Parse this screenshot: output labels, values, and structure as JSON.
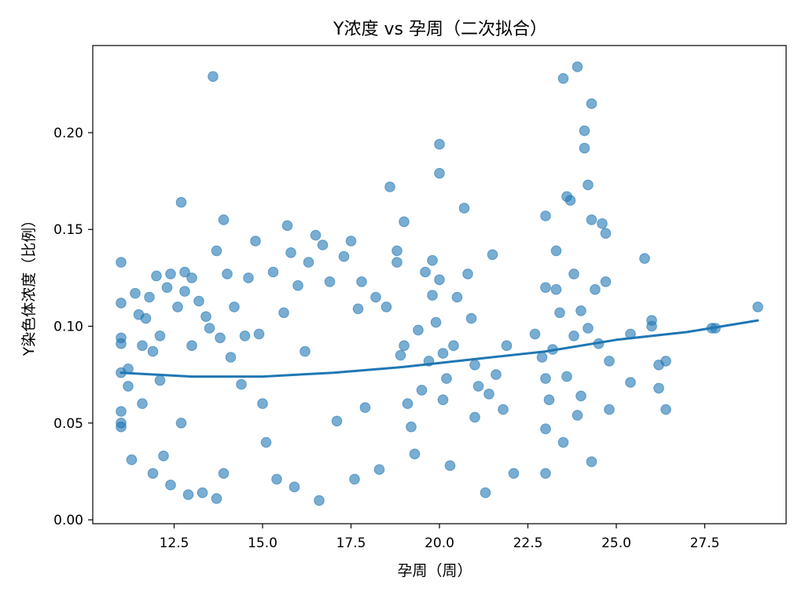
{
  "chart_data": {
    "type": "scatter",
    "title": "Y浓度 vs 孕周（二次拟合）",
    "xlabel": "孕周（周）",
    "ylabel": "Y染色体浓度（比例）",
    "xlim": [
      10.2,
      29.8
    ],
    "ylim": [
      -0.002,
      0.245
    ],
    "x_ticks": [
      {
        "value": 12.5,
        "label": "12.5"
      },
      {
        "value": 15.0,
        "label": "15.0"
      },
      {
        "value": 17.5,
        "label": "17.5"
      },
      {
        "value": 20.0,
        "label": "20.0"
      },
      {
        "value": 22.5,
        "label": "22.5"
      },
      {
        "value": 25.0,
        "label": "25.0"
      },
      {
        "value": 27.5,
        "label": "27.5"
      }
    ],
    "y_ticks": [
      {
        "value": 0.0,
        "label": "0.00"
      },
      {
        "value": 0.05,
        "label": "0.05"
      },
      {
        "value": 0.1,
        "label": "0.10"
      },
      {
        "value": 0.15,
        "label": "0.15"
      },
      {
        "value": 0.2,
        "label": "0.20"
      }
    ],
    "grid": false,
    "legend": "none",
    "colors": {
      "points": "#1f77b4",
      "fit": "#1f77b4"
    },
    "series": [
      {
        "kind": "scatter",
        "points": [
          [
            11.0,
            0.133
          ],
          [
            11.0,
            0.112
          ],
          [
            11.0,
            0.094
          ],
          [
            11.0,
            0.091
          ],
          [
            11.0,
            0.076
          ],
          [
            11.0,
            0.056
          ],
          [
            11.0,
            0.05
          ],
          [
            11.0,
            0.048
          ],
          [
            11.2,
            0.078
          ],
          [
            11.2,
            0.069
          ],
          [
            11.3,
            0.031
          ],
          [
            11.4,
            0.117
          ],
          [
            11.5,
            0.106
          ],
          [
            11.6,
            0.09
          ],
          [
            11.6,
            0.06
          ],
          [
            11.7,
            0.104
          ],
          [
            11.8,
            0.115
          ],
          [
            11.9,
            0.087
          ],
          [
            11.9,
            0.024
          ],
          [
            12.0,
            0.126
          ],
          [
            12.1,
            0.095
          ],
          [
            12.1,
            0.072
          ],
          [
            12.2,
            0.033
          ],
          [
            12.3,
            0.12
          ],
          [
            12.4,
            0.127
          ],
          [
            12.4,
            0.018
          ],
          [
            12.6,
            0.11
          ],
          [
            12.7,
            0.164
          ],
          [
            12.7,
            0.05
          ],
          [
            12.8,
            0.128
          ],
          [
            12.8,
            0.118
          ],
          [
            12.9,
            0.013
          ],
          [
            13.0,
            0.125
          ],
          [
            13.0,
            0.09
          ],
          [
            13.2,
            0.113
          ],
          [
            13.3,
            0.014
          ],
          [
            13.4,
            0.105
          ],
          [
            13.5,
            0.099
          ],
          [
            13.6,
            0.229
          ],
          [
            13.7,
            0.139
          ],
          [
            13.7,
            0.011
          ],
          [
            13.8,
            0.094
          ],
          [
            13.9,
            0.155
          ],
          [
            13.9,
            0.024
          ],
          [
            14.0,
            0.127
          ],
          [
            14.1,
            0.084
          ],
          [
            14.2,
            0.11
          ],
          [
            14.4,
            0.07
          ],
          [
            14.5,
            0.095
          ],
          [
            14.6,
            0.125
          ],
          [
            14.8,
            0.144
          ],
          [
            14.9,
            0.096
          ],
          [
            15.0,
            0.06
          ],
          [
            15.1,
            0.04
          ],
          [
            15.3,
            0.128
          ],
          [
            15.4,
            0.021
          ],
          [
            15.6,
            0.107
          ],
          [
            15.7,
            0.152
          ],
          [
            15.8,
            0.138
          ],
          [
            15.9,
            0.017
          ],
          [
            16.0,
            0.121
          ],
          [
            16.2,
            0.087
          ],
          [
            16.3,
            0.133
          ],
          [
            16.5,
            0.147
          ],
          [
            16.6,
            0.01
          ],
          [
            16.7,
            0.142
          ],
          [
            16.9,
            0.123
          ],
          [
            17.1,
            0.051
          ],
          [
            17.3,
            0.136
          ],
          [
            17.5,
            0.144
          ],
          [
            17.6,
            0.021
          ],
          [
            17.7,
            0.109
          ],
          [
            17.8,
            0.123
          ],
          [
            17.9,
            0.058
          ],
          [
            18.2,
            0.115
          ],
          [
            18.3,
            0.026
          ],
          [
            18.5,
            0.11
          ],
          [
            18.6,
            0.172
          ],
          [
            18.8,
            0.139
          ],
          [
            18.8,
            0.133
          ],
          [
            18.9,
            0.085
          ],
          [
            19.0,
            0.154
          ],
          [
            19.0,
            0.09
          ],
          [
            19.1,
            0.06
          ],
          [
            19.2,
            0.048
          ],
          [
            19.3,
            0.034
          ],
          [
            19.4,
            0.098
          ],
          [
            19.5,
            0.067
          ],
          [
            19.6,
            0.128
          ],
          [
            19.7,
            0.082
          ],
          [
            19.8,
            0.134
          ],
          [
            19.8,
            0.116
          ],
          [
            19.9,
            0.102
          ],
          [
            20.0,
            0.194
          ],
          [
            20.0,
            0.179
          ],
          [
            20.0,
            0.124
          ],
          [
            20.1,
            0.086
          ],
          [
            20.1,
            0.062
          ],
          [
            20.2,
            0.073
          ],
          [
            20.3,
            0.028
          ],
          [
            20.4,
            0.09
          ],
          [
            20.5,
            0.115
          ],
          [
            20.7,
            0.161
          ],
          [
            20.8,
            0.127
          ],
          [
            20.9,
            0.104
          ],
          [
            21.0,
            0.08
          ],
          [
            21.0,
            0.053
          ],
          [
            21.1,
            0.069
          ],
          [
            21.3,
            0.014
          ],
          [
            21.4,
            0.065
          ],
          [
            21.5,
            0.137
          ],
          [
            21.6,
            0.075
          ],
          [
            21.8,
            0.057
          ],
          [
            21.9,
            0.09
          ],
          [
            22.1,
            0.024
          ],
          [
            22.7,
            0.096
          ],
          [
            22.9,
            0.084
          ],
          [
            23.0,
            0.157
          ],
          [
            23.0,
            0.12
          ],
          [
            23.0,
            0.073
          ],
          [
            23.0,
            0.047
          ],
          [
            23.0,
            0.024
          ],
          [
            23.1,
            0.062
          ],
          [
            23.2,
            0.088
          ],
          [
            23.3,
            0.139
          ],
          [
            23.3,
            0.119
          ],
          [
            23.4,
            0.107
          ],
          [
            23.5,
            0.228
          ],
          [
            23.5,
            0.04
          ],
          [
            23.6,
            0.167
          ],
          [
            23.6,
            0.074
          ],
          [
            23.7,
            0.165
          ],
          [
            23.8,
            0.127
          ],
          [
            23.8,
            0.095
          ],
          [
            23.9,
            0.234
          ],
          [
            23.9,
            0.054
          ],
          [
            24.0,
            0.108
          ],
          [
            24.0,
            0.064
          ],
          [
            24.1,
            0.201
          ],
          [
            24.1,
            0.192
          ],
          [
            24.2,
            0.173
          ],
          [
            24.2,
            0.099
          ],
          [
            24.3,
            0.215
          ],
          [
            24.3,
            0.155
          ],
          [
            24.3,
            0.03
          ],
          [
            24.4,
            0.119
          ],
          [
            24.5,
            0.091
          ],
          [
            24.6,
            0.153
          ],
          [
            24.7,
            0.148
          ],
          [
            24.7,
            0.123
          ],
          [
            24.8,
            0.082
          ],
          [
            24.8,
            0.057
          ],
          [
            25.4,
            0.096
          ],
          [
            25.4,
            0.071
          ],
          [
            25.8,
            0.135
          ],
          [
            26.0,
            0.103
          ],
          [
            26.0,
            0.1
          ],
          [
            26.2,
            0.08
          ],
          [
            26.2,
            0.068
          ],
          [
            26.4,
            0.082
          ],
          [
            26.4,
            0.057
          ],
          [
            27.7,
            0.099
          ],
          [
            27.8,
            0.099
          ],
          [
            29.0,
            0.11
          ]
        ]
      },
      {
        "kind": "fit",
        "points": [
          [
            11.0,
            0.076
          ],
          [
            13.0,
            0.074
          ],
          [
            15.0,
            0.074
          ],
          [
            17.0,
            0.076
          ],
          [
            19.0,
            0.079
          ],
          [
            21.0,
            0.083
          ],
          [
            23.0,
            0.087
          ],
          [
            25.0,
            0.093
          ],
          [
            27.0,
            0.097
          ],
          [
            29.0,
            0.103
          ]
        ]
      }
    ]
  }
}
